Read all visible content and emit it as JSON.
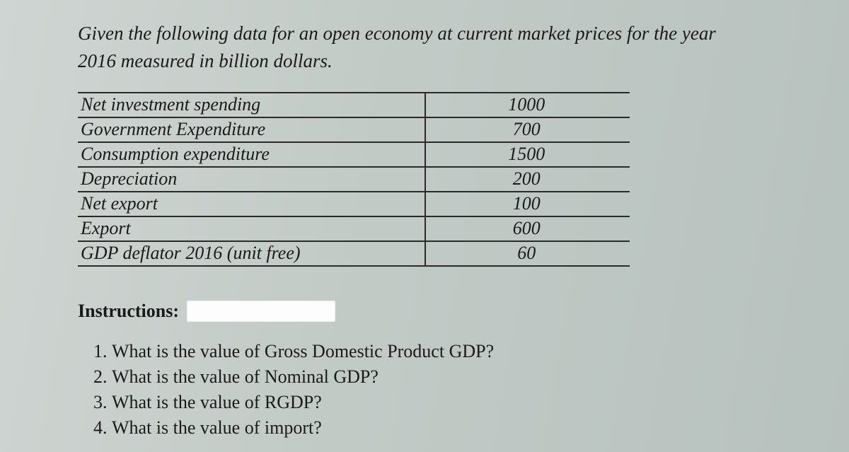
{
  "intro": {
    "line1": "Given the following data for an open economy at current market prices for the year",
    "line2": "2016 measured in billion dollars."
  },
  "table": {
    "rows": [
      {
        "label": "Net investment spending",
        "value": "1000"
      },
      {
        "label": "Government Expenditure",
        "value": "700"
      },
      {
        "label": "Consumption expenditure",
        "value": "1500"
      },
      {
        "label": "Depreciation",
        "value": "200"
      },
      {
        "label": "Net export",
        "value": "100"
      },
      {
        "label": "Export",
        "value": "600"
      },
      {
        "label": "GDP deflator 2016 (unit free)",
        "value": "60"
      }
    ]
  },
  "instructions_label": "Instructions:",
  "questions": [
    "What is the value of Gross Domestic Product GDP?",
    "What is the value of Nominal GDP?",
    "What is the value of RGDP?",
    "What is the value of import?"
  ],
  "style": {
    "text_color": "#1a1a1a",
    "rule_color": "#2a2a2a",
    "background_gradient": [
      "#cfd5d2",
      "#c3cbc7",
      "#b7c1bd"
    ],
    "redaction_color": "#fdfdfd",
    "body_fontsize_pt": 20,
    "intro_italic": true,
    "table_italic": true,
    "label_bold": true
  }
}
